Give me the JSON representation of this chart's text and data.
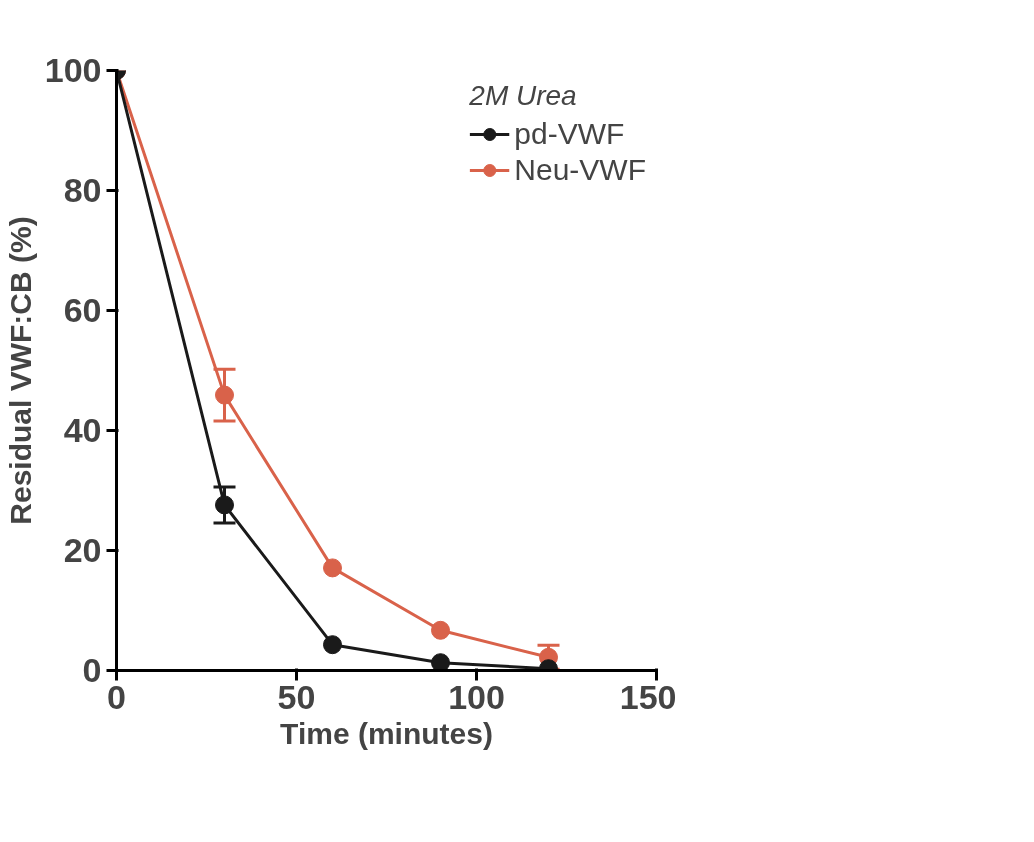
{
  "chart_data": {
    "type": "line",
    "xlabel": "Time (minutes)",
    "ylabel": "Residual VWF:CB (%)",
    "legend_title": "2M Urea",
    "x": [
      0,
      30,
      60,
      90,
      120
    ],
    "series": [
      {
        "name": "pd-VWF",
        "color": "#1a1a1a",
        "values": [
          100,
          27.6,
          4.3,
          1.3,
          0.3
        ],
        "errors": [
          null,
          3,
          null,
          null,
          null
        ]
      },
      {
        "name": "Neu-VWF",
        "color": "#d9624a",
        "values": [
          100,
          45.9,
          17.1,
          6.7,
          2.2
        ],
        "errors": [
          null,
          4.3,
          null,
          null,
          2
        ]
      }
    ],
    "xlim": [
      0,
      150
    ],
    "xticks": [
      0,
      50,
      100,
      150
    ],
    "ylim": [
      0,
      100
    ],
    "yticks": [
      0,
      20,
      40,
      60,
      80,
      100
    ],
    "grid": false,
    "legend": "top right",
    "marker": "circle",
    "line_style": "solid"
  }
}
